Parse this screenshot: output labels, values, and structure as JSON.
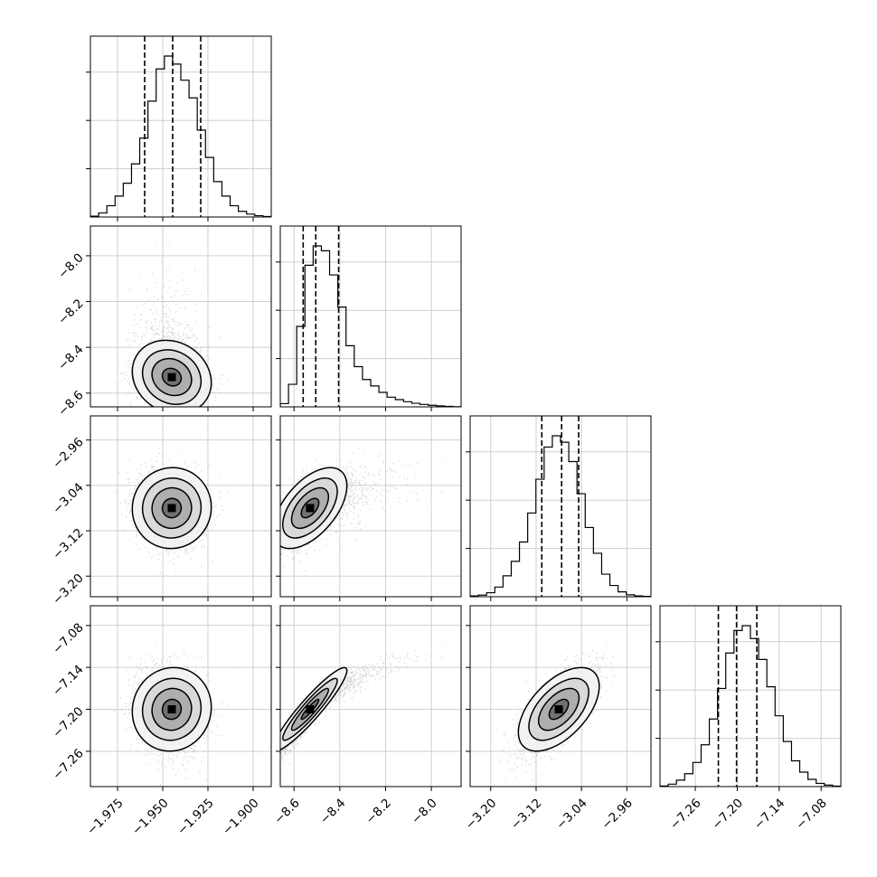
{
  "chart_data": {
    "type": "corner",
    "title": "",
    "grid": true,
    "parameters": [
      {
        "range": [
          -1.99,
          -1.89
        ],
        "ticks": [
          -1.975,
          -1.95,
          -1.925,
          -1.9
        ],
        "tick_labels": [
          "−1.975",
          "−1.950",
          "−1.925",
          "−1.900"
        ],
        "quantiles": [
          -1.96,
          -1.9445,
          -1.929
        ],
        "median": -1.9445,
        "mode": -1.945,
        "sigma": 0.0095,
        "hist_counts": [
          0.5,
          2.5,
          7,
          13,
          21,
          33,
          49,
          72,
          92,
          100,
          95,
          85,
          74,
          54,
          37,
          22,
          13,
          7,
          3.5,
          1.8,
          0.8,
          0.3
        ]
      },
      {
        "range": [
          -8.66,
          -7.87
        ],
        "ticks": [
          -8.6,
          -8.4,
          -8.2,
          -8.0
        ],
        "tick_labels": [
          "−8.6",
          "−8.4",
          "−8.2",
          "−8.0"
        ],
        "quantiles": [
          -8.56,
          -8.505,
          -8.405
        ],
        "median": -8.505,
        "mode": -8.53,
        "sigma": 0.07,
        "hist_counts": [
          2,
          14,
          50,
          88,
          100,
          97,
          82,
          62,
          38,
          25,
          17,
          13,
          9,
          6,
          4.5,
          3.2,
          2.2,
          1.5,
          1,
          0.6,
          0.3,
          0.1
        ]
      },
      {
        "range": [
          -3.2363,
          -2.9175
        ],
        "ticks": [
          -3.2,
          -3.12,
          -3.04,
          -2.96
        ],
        "tick_labels": [
          "−3.20",
          "−3.12",
          "−3.04",
          "−2.96"
        ],
        "quantiles": [
          -3.11,
          -3.075,
          -3.045
        ],
        "median": -3.075,
        "mode": -3.08,
        "sigma": 0.031,
        "hist_counts": [
          0.5,
          1,
          2.5,
          6,
          13,
          22,
          34,
          52,
          73,
          93,
          100,
          96,
          84,
          64,
          43,
          27,
          14,
          7,
          3,
          1.2,
          0.5,
          0.2
        ]
      },
      {
        "range": [
          -7.3105,
          -7.0518
        ],
        "ticks": [
          -7.26,
          -7.2,
          -7.14,
          -7.08
        ],
        "tick_labels": [
          "−7.26",
          "−7.20",
          "−7.14",
          "−7.08"
        ],
        "quantiles": [
          -7.227,
          -7.201,
          -7.172
        ],
        "median": -7.201,
        "mode": -7.2,
        "sigma": 0.026,
        "hist_counts": [
          0.4,
          1.5,
          4,
          8,
          15,
          26,
          42,
          61,
          83,
          97,
          100,
          92,
          79,
          62,
          44,
          28,
          16,
          9,
          4.5,
          2,
          0.9,
          0.3
        ]
      }
    ],
    "correlations": {
      "1-0": -0.15,
      "2-0": 0.02,
      "2-1": 0.55,
      "3-0": 0.05,
      "3-1": 0.93,
      "3-2": 0.55
    }
  }
}
